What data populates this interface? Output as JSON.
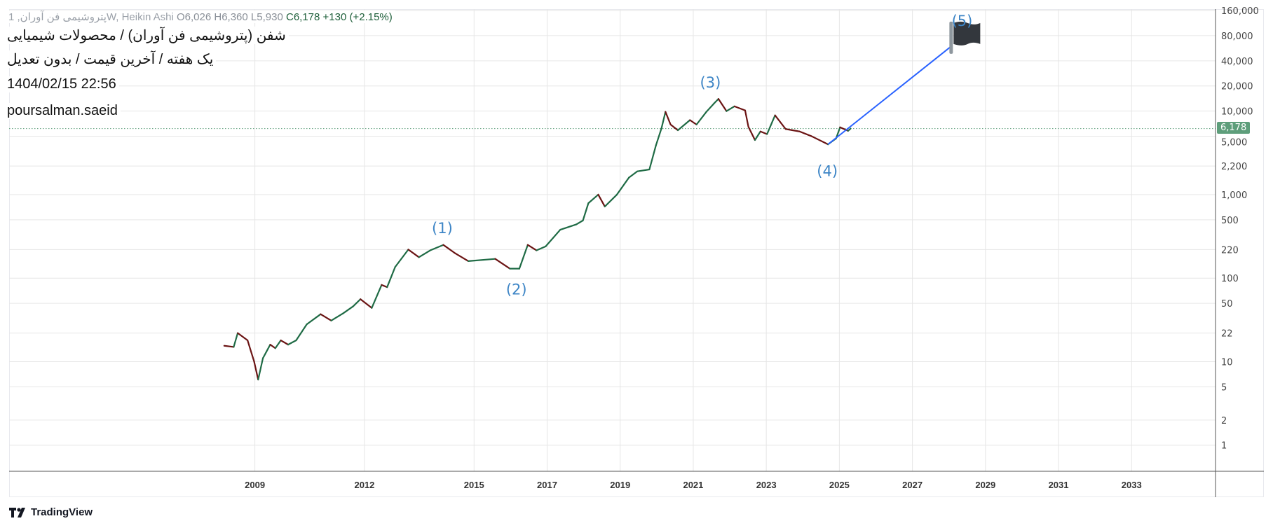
{
  "header": {
    "title": "شفن (پتروشیمی فن آوران) / محصولات شیمیایی",
    "subtitle": "یک هفته / آخرین قیمت / بدون تعدیل",
    "datetime": "1404/02/15 22:56",
    "author": "poursalman.saeid"
  },
  "legend": {
    "symbol": "پتروشیمی فن آوران, 1",
    "interval_type": "W, Heikin Ashi",
    "open": "O6,026",
    "high": "H6,360",
    "low": "L5,930",
    "close": "C6,178",
    "change": "+130 (+2.15%)"
  },
  "branding": {
    "logo_text": "TradingView"
  },
  "colors": {
    "up": "#1f6b45",
    "down": "#6b1414",
    "projection": "#2962ff",
    "last_price": "#5e9e7b",
    "wave_label": "#3d85c6",
    "grid": "#e6e6e6"
  },
  "chart_data": {
    "type": "line",
    "style": "heikin-ashi candles (weekly)",
    "y_scale": "log",
    "grid": true,
    "y_ticks": [
      "160,000",
      "80,000",
      "40,000",
      "20,000",
      "10,000",
      "5,000",
      "2,200",
      "1,000",
      "500",
      "220",
      "100",
      "50",
      "22",
      "10",
      "5",
      "2",
      "1"
    ],
    "y_tick_values": [
      160000,
      80000,
      40000,
      20000,
      10000,
      5000,
      2200,
      1000,
      500,
      220,
      100,
      50,
      22,
      10,
      5,
      2,
      1
    ],
    "x_ticks": [
      "2009",
      "2012",
      "2015",
      "2017",
      "2019",
      "2021",
      "2023",
      "2025",
      "2027",
      "2029",
      "2031",
      "2033"
    ],
    "x_tick_values": [
      2009,
      2012,
      2015,
      2017,
      2019,
      2021,
      2023,
      2025,
      2027,
      2029,
      2031,
      2033
    ],
    "last_price": 6178,
    "last_price_label": "6,178",
    "series": [
      {
        "x": [
          2008.16,
          2008.42,
          2008.53,
          2008.8,
          2008.98,
          2009.09,
          2009.22,
          2009.42,
          2009.56,
          2009.71,
          2009.91,
          2010.13,
          2010.42,
          2010.8,
          2011.09,
          2011.42,
          2011.69,
          2011.89,
          2012.2,
          2012.47,
          2012.62,
          2012.84,
          2013.2,
          2013.49,
          2013.8,
          2014.16,
          2014.47,
          2014.84,
          2015.58,
          2015.98,
          2016.24,
          2016.47,
          2016.71,
          2016.96,
          2017.36,
          2017.8,
          2017.98,
          2018.13,
          2018.4,
          2018.58,
          2018.91,
          2019.24,
          2019.47,
          2019.8,
          2019.98,
          2020.13,
          2020.24,
          2020.38,
          2020.58,
          2020.91,
          2021.09,
          2021.36,
          2021.58,
          2021.69,
          2021.91,
          2022.13,
          2022.42,
          2022.51,
          2022.69,
          2022.84,
          2023.02,
          2023.24,
          2023.53,
          2023.91,
          2024.24,
          2024.69,
          2024.91,
          2025.02,
          2025.24,
          2025.31
        ],
        "y": [
          15.5,
          15,
          22,
          18,
          10,
          6.1,
          11,
          16,
          14.5,
          18,
          16,
          18,
          28,
          37,
          31,
          38,
          46,
          56,
          44,
          83,
          78,
          136,
          220,
          178,
          215,
          250,
          200,
          160,
          170,
          130,
          130,
          250,
          215,
          240,
          380,
          440,
          490,
          790,
          1000,
          720,
          1000,
          1600,
          1900,
          2000,
          3900,
          6200,
          9800,
          6900,
          5900,
          7800,
          6900,
          9800,
          12500,
          14000,
          10000,
          11400,
          10200,
          6500,
          4500,
          5700,
          5300,
          8900,
          6100,
          5700,
          5000,
          4000,
          4700,
          6400,
          5800,
          6178
        ]
      }
    ],
    "projection": {
      "from": {
        "x": 2024.69,
        "y": 4000
      },
      "to": {
        "x": 2028.07,
        "y": 60000
      },
      "marker": "flag-icon"
    },
    "annotations": [
      {
        "label": "(1)",
        "x": 2014.13,
        "y": 395
      },
      {
        "label": "(2)",
        "x": 2016.16,
        "y": 73
      },
      {
        "label": "(3)",
        "x": 2021.47,
        "y": 21900
      },
      {
        "label": "(4)",
        "x": 2024.67,
        "y": 1900
      },
      {
        "label": "(5)",
        "x": 2028.36,
        "y": 120000
      }
    ]
  }
}
